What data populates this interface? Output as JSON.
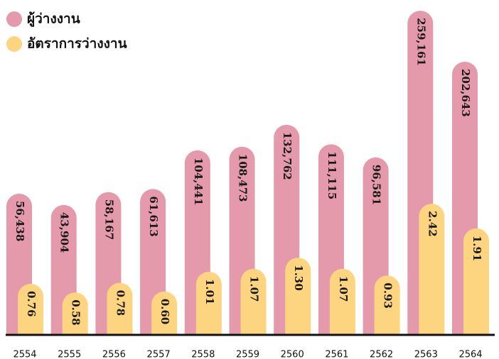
{
  "chart_data": {
    "type": "bar",
    "categories": [
      "2554",
      "2555",
      "2556",
      "2557",
      "2558",
      "2559",
      "2560",
      "2561",
      "2562",
      "2563",
      "2564"
    ],
    "series": [
      {
        "name": "ผู้ว่างงาน",
        "color": "#e49aaa",
        "values": [
          56438,
          43904,
          58167,
          61613,
          104441,
          108473,
          132762,
          111115,
          96581,
          259161,
          202643
        ],
        "value_labels": [
          "56,438",
          "43,904",
          "58,167",
          "61,613",
          "104,441",
          "108,473",
          "132,762",
          "111,115",
          "96,581",
          "259,161",
          "202,643"
        ]
      },
      {
        "name": "อัตราการว่างงาน",
        "color": "#fdd47f",
        "axis": "y2",
        "values": [
          0.76,
          0.58,
          0.78,
          0.6,
          1.01,
          1.07,
          1.3,
          1.07,
          0.93,
          2.42,
          1.91
        ],
        "value_labels": [
          "0.76",
          "0.58",
          "0.78",
          "0.60",
          "1.01",
          "1.07",
          "1.30",
          "1.07",
          "0.93",
          "2.42",
          "1.91"
        ]
      }
    ],
    "ylim": [
      -100000,
      260000
    ],
    "y2lim": [
      -0.3,
      6.44
    ]
  }
}
